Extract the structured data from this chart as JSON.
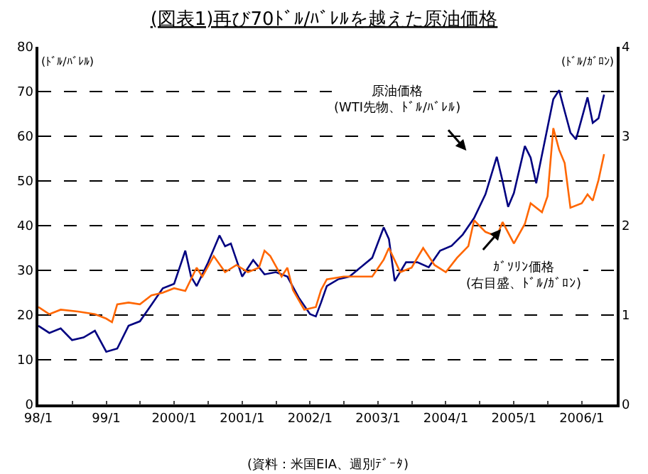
{
  "chart_data": {
    "type": "line",
    "title": "(図表1)再び70ﾄﾞﾙ/ﾊﾞﾚﾙを越えた原油価格",
    "ylabel": "(ﾄﾞﾙ/ﾊﾞﾚﾙ)",
    "y2label": "(ﾄﾞﾙ/ｶﾞﾛﾝ)",
    "annotations": [
      "原油価格\n(WTI先物、ﾄﾞﾙ/ﾊﾞﾚﾙ)",
      "ｶﾞｿﾘﾝ価格\n(右目盛、ﾄﾞﾙ/ｶﾞﾛﾝ)",
      "(資料：米国EIA、週別ﾃﾞｰﾀ)"
    ],
    "series": [
      {
        "color": "#000080",
        "x": [
          "1998-01",
          "1998-03",
          "1998-05",
          "1998-07",
          "1998-09",
          "1998-11",
          "1999-01",
          "1999-03",
          "1999-05",
          "1999-07",
          "1999-09",
          "1999-11",
          "2000-01",
          "2000-03",
          "2000-04",
          "2000-05",
          "2000-07",
          "2000-09",
          "2000-10",
          "2000-11",
          "2001-01",
          "2001-03",
          "2001-05",
          "2001-07",
          "2001-09",
          "2001-11",
          "2002-01",
          "2002-02",
          "2002-03",
          "2002-04",
          "2002-06",
          "2002-08",
          "2002-10",
          "2002-12",
          "2003-02",
          "2003-03",
          "2003-04",
          "2003-06",
          "2003-08",
          "2003-10",
          "2003-12",
          "2004-02",
          "2004-04",
          "2004-06",
          "2004-08",
          "2004-10",
          "2004-11",
          "2004-12",
          "2005-01",
          "2005-03",
          "2005-04",
          "2005-05",
          "2005-07",
          "2005-08",
          "2005-09",
          "2005-10",
          "2005-11",
          "2005-12",
          "2006-01",
          "2006-02",
          "2006-03",
          "2006-04",
          "2006-05"
        ],
        "values": [
          17.6,
          16,
          17,
          14.4,
          15,
          16.5,
          11.8,
          12.5,
          17.6,
          18.6,
          22.3,
          26,
          27,
          34.4,
          28.6,
          26.5,
          31.7,
          37.8,
          35.4,
          36,
          28.6,
          32.3,
          29.1,
          29.6,
          28.6,
          23.9,
          20.2,
          19.7,
          22.8,
          26.5,
          28,
          28.6,
          30.7,
          32.8,
          39.6,
          37,
          27.6,
          31.8,
          31.8,
          30.7,
          34.4,
          35.5,
          38,
          41.7,
          47,
          55.4,
          50,
          44.2,
          47.3,
          57.8,
          55.2,
          49.5,
          62,
          68.3,
          70.3,
          65.6,
          60.8,
          59.3,
          64,
          68.7,
          63,
          64,
          69.3
        ]
      },
      {
        "color": "#ff6600",
        "axis": "y2",
        "x": [
          "1998-01",
          "1998-03",
          "1998-05",
          "1998-08",
          "1998-11",
          "1999-01",
          "1999-02",
          "1999-03",
          "1999-05",
          "1999-07",
          "1999-09",
          "1999-11",
          "2000-01",
          "2000-03",
          "2000-05",
          "2000-06",
          "2000-08",
          "2000-10",
          "2000-12",
          "2001-02",
          "2001-04",
          "2001-05",
          "2001-06",
          "2001-08",
          "2001-09",
          "2001-10",
          "2001-12",
          "2002-02",
          "2002-03",
          "2002-04",
          "2002-07",
          "2002-10",
          "2002-12",
          "2003-02",
          "2003-03",
          "2003-05",
          "2003-07",
          "2003-09",
          "2003-11",
          "2004-01",
          "2004-03",
          "2004-05",
          "2004-06",
          "2004-08",
          "2004-10",
          "2004-11",
          "2005-01",
          "2005-03",
          "2005-04",
          "2005-06",
          "2005-07",
          "2005-08",
          "2005-09",
          "2005-10",
          "2005-11",
          "2006-01",
          "2006-02",
          "2006-03",
          "2006-04",
          "2006-05"
        ],
        "values": [
          1.09,
          1.01,
          1.06,
          1.04,
          1.01,
          0.96,
          0.92,
          1.12,
          1.14,
          1.12,
          1.22,
          1.25,
          1.3,
          1.27,
          1.53,
          1.43,
          1.66,
          1.48,
          1.56,
          1.48,
          1.53,
          1.72,
          1.66,
          1.43,
          1.53,
          1.28,
          1.06,
          1.09,
          1.28,
          1.4,
          1.43,
          1.43,
          1.43,
          1.62,
          1.75,
          1.48,
          1.53,
          1.75,
          1.56,
          1.48,
          1.64,
          1.77,
          2.06,
          1.93,
          1.88,
          2.04,
          1.8,
          2.02,
          2.25,
          2.15,
          2.33,
          3.09,
          2.85,
          2.7,
          2.2,
          2.25,
          2.35,
          2.28,
          2.51,
          2.8
        ]
      }
    ],
    "xlim": [
      "1998-01-01",
      "2006-07-08"
    ],
    "xticks": [
      {
        "value": "1998-01-01",
        "label": "98/1"
      },
      {
        "value": "1998-07-02",
        "label": null
      },
      {
        "value": "1999-01-01",
        "label": "99/1"
      },
      {
        "value": "1999-07-02",
        "label": null
      },
      {
        "value": "2000-01-01",
        "label": "2000/1"
      },
      {
        "value": "2000-07-02",
        "label": null
      },
      {
        "value": "2001-01-01",
        "label": "2001/1"
      },
      {
        "value": "2001-07-02",
        "label": null
      },
      {
        "value": "2002-01-01",
        "label": "2002/1"
      },
      {
        "value": "2002-07-02",
        "label": null
      },
      {
        "value": "2003-01-01",
        "label": "2003/1"
      },
      {
        "value": "2003-07-02",
        "label": null
      },
      {
        "value": "2004-01-01",
        "label": "2004/1"
      },
      {
        "value": "2004-07-02",
        "label": null
      },
      {
        "value": "2005-01-01",
        "label": "2005/1"
      },
      {
        "value": "2005-07-02",
        "label": null
      },
      {
        "value": "2006-01-01",
        "label": "2006/1"
      },
      {
        "value": "2006-07-02",
        "label": null
      }
    ],
    "ylim": [
      0,
      80
    ],
    "yticks": [
      0,
      10,
      20,
      30,
      40,
      50,
      60,
      70,
      80
    ],
    "y2lim": [
      0,
      4
    ],
    "y2ticks": [
      0,
      1,
      2,
      3,
      4
    ],
    "grid": "y",
    "line_style": "solid",
    "marker": "none"
  }
}
